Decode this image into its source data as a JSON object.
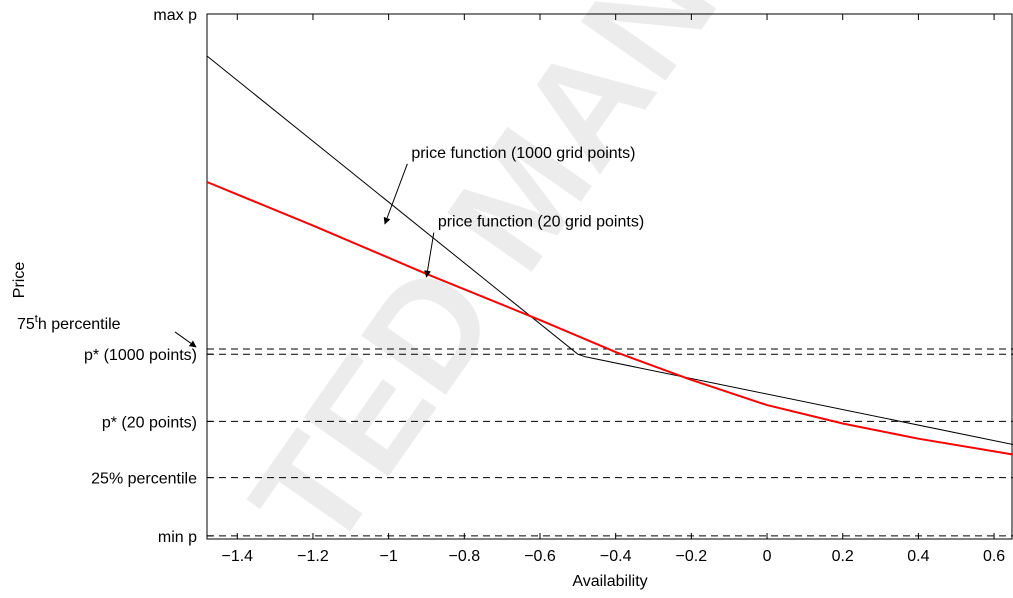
{
  "chart_data": {
    "type": "line",
    "title": "",
    "xlabel": "Availability",
    "ylabel": "Price",
    "xlim": [
      -1.48,
      0.65
    ],
    "ylim": [
      0,
      10
    ],
    "xticks": [
      -1.4,
      -1.2,
      -1,
      -0.8,
      -0.6,
      -0.4,
      -0.2,
      0,
      0.2,
      0.4,
      0.6
    ],
    "xtick_labels": [
      "−1.4",
      "−1.2",
      "−1",
      "−0.8",
      "−0.6",
      "−0.4",
      "−0.2",
      "0",
      "0.2",
      "0.4",
      "0.6"
    ],
    "ytick_labels": [
      {
        "label": "max p",
        "y": 10
      },
      {
        "label": "p* (1000 points)",
        "y": 3.52
      },
      {
        "label": "p* (20 points)",
        "y": 2.24
      },
      {
        "label": "25% percentile",
        "y": 1.17
      },
      {
        "label": "min p",
        "y": 0.06
      }
    ],
    "pct75": {
      "base": "75",
      "sup": "t",
      "rest": "h percentile",
      "y": 3.62
    },
    "hlines": [
      3.62,
      3.52,
      2.24,
      1.17,
      0.06
    ],
    "series": [
      {
        "color": "#000000",
        "x": [
          -1.48,
          -0.5,
          -0.48,
          0.65
        ],
        "y": [
          9.2,
          3.52,
          3.47,
          1.8
        ]
      },
      {
        "color": "#ff0000",
        "x": [
          -1.48,
          -1.2,
          -0.9,
          -0.6,
          -0.4,
          -0.2,
          0,
          0.2,
          0.4,
          0.65
        ],
        "y": [
          6.8,
          5.97,
          5.05,
          4.17,
          3.56,
          3.03,
          2.55,
          2.2,
          1.91,
          1.61
        ]
      }
    ],
    "annotations": [
      {
        "text": "price function (1000 grid points)",
        "x": -0.94,
        "y": 7.26,
        "arrow_to": [
          -1.01,
          6.0
        ]
      },
      {
        "text": "price function (20 grid points)",
        "x": -0.87,
        "y": 5.95,
        "arrow_to": [
          -0.9,
          4.99
        ]
      }
    ],
    "grid": false,
    "legend": "none"
  },
  "watermark": "TED MANU"
}
